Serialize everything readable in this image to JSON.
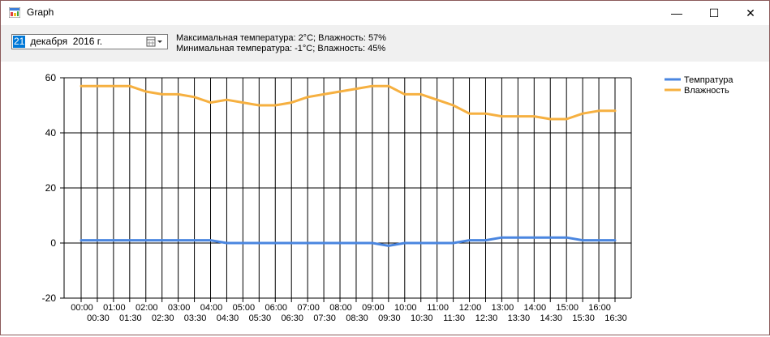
{
  "window": {
    "title": "Graph",
    "controls": {
      "minimize": "—",
      "maximize": "☐",
      "close": "✕"
    }
  },
  "toolbar": {
    "date_day": "21",
    "date_rest": " декабря  2016 г.",
    "max_line": "Максимальная температура: 2°C; Влажность: 57%",
    "min_line": "Минимальная температура: -1°C; Влажность: 45%"
  },
  "colors": {
    "temperature": "#4a86e0",
    "humidity": "#f6b040",
    "selection": "#0078d7"
  },
  "chart_data": {
    "type": "line",
    "ylim": [
      -20,
      60
    ],
    "yticks": [
      -20,
      0,
      20,
      40,
      60
    ],
    "grid": true,
    "legend_position": "top-right",
    "x": [
      "00:00",
      "00:30",
      "01:00",
      "01:30",
      "02:00",
      "02:30",
      "03:00",
      "03:30",
      "04:00",
      "04:30",
      "05:00",
      "05:30",
      "06:00",
      "06:30",
      "07:00",
      "07:30",
      "08:00",
      "08:30",
      "09:00",
      "09:30",
      "10:00",
      "10:30",
      "11:00",
      "11:30",
      "12:00",
      "12:30",
      "13:00",
      "13:30",
      "14:00",
      "14:30",
      "15:00",
      "15:30",
      "16:00",
      "16:30"
    ],
    "series": [
      {
        "name": "Темпратура",
        "color": "#4a86e0",
        "values": [
          1,
          1,
          1,
          1,
          1,
          1,
          1,
          1,
          1,
          0,
          0,
          0,
          0,
          0,
          0,
          0,
          0,
          0,
          0,
          -1,
          0,
          0,
          0,
          0,
          1,
          1,
          2,
          2,
          2,
          2,
          2,
          1,
          1,
          1
        ]
      },
      {
        "name": "Влажность",
        "color": "#f6b040",
        "values": [
          57,
          57,
          57,
          57,
          55,
          54,
          54,
          53,
          51,
          52,
          51,
          50,
          50,
          51,
          53,
          54,
          55,
          56,
          57,
          57,
          54,
          54,
          52,
          50,
          47,
          47,
          46,
          46,
          46,
          45,
          45,
          47,
          48,
          48
        ]
      }
    ]
  }
}
